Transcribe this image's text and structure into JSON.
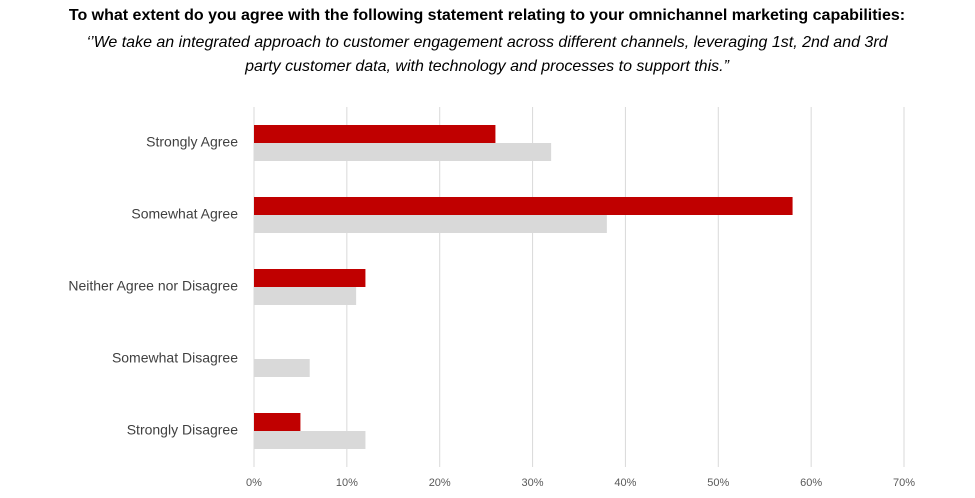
{
  "chart_data": {
    "type": "bar",
    "orientation": "horizontal",
    "title": "To what extent do you agree with the following statement relating to your omnichannel marketing capabilities:",
    "subtitle": [
      "‘’We take an integrated approach to customer engagement across different channels, leveraging 1st, 2nd and 3rd",
      "party customer data, with technology and processes to support this.”"
    ],
    "categories": [
      "Strongly Agree",
      "Somewhat Agree",
      "Neither Agree nor Disagree",
      "Somewhat Disagree",
      "Strongly Disagree"
    ],
    "series": [
      {
        "color": "#c00000",
        "values": [
          26,
          58,
          12,
          0,
          5
        ]
      },
      {
        "color": "#d9d9d9",
        "values": [
          32,
          38,
          11,
          6,
          12
        ]
      }
    ],
    "xlim": [
      0,
      70
    ],
    "xticks": [
      {
        "value": 0,
        "label": "0%"
      },
      {
        "value": 10,
        "label": "10%"
      },
      {
        "value": 20,
        "label": "20%"
      },
      {
        "value": 30,
        "label": "30%"
      },
      {
        "value": 40,
        "label": "40%"
      },
      {
        "value": 50,
        "label": "50%"
      },
      {
        "value": 60,
        "label": "60%"
      },
      {
        "value": 70,
        "label": "70%"
      }
    ],
    "grid": true
  }
}
